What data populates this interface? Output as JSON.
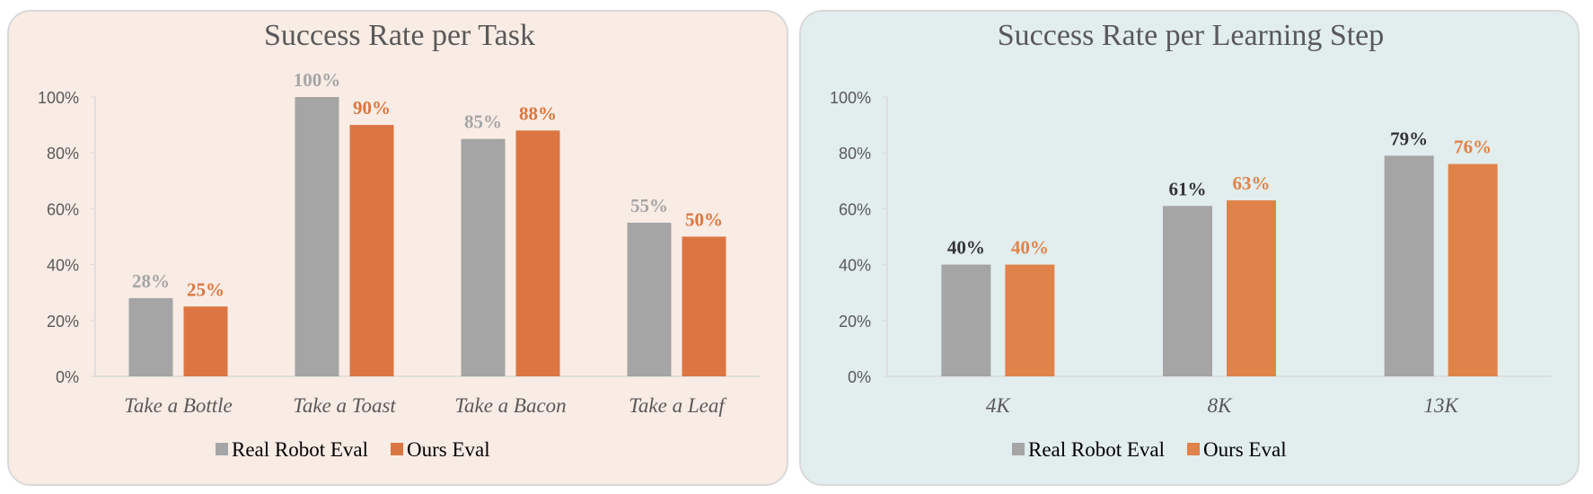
{
  "chart_data": [
    {
      "type": "bar",
      "title": "Success Rate per Task",
      "categories": [
        "Take a Bottle",
        "Take a Toast",
        "Take a Bacon",
        "Take a Leaf"
      ],
      "series": [
        {
          "name": "Real Robot Eval",
          "values": [
            28,
            100,
            85,
            55
          ],
          "color": "#a5a5a5",
          "label_color": "#a5a5a5"
        },
        {
          "name": "Ours Eval",
          "values": [
            25,
            90,
            88,
            50
          ],
          "color": "#db7642",
          "label_color": "#db7642"
        }
      ],
      "yticks": [
        "0%",
        "20%",
        "40%",
        "60%",
        "80%",
        "100%"
      ],
      "ylim": [
        0,
        100
      ],
      "value_format": "percent",
      "legend": "bottom",
      "grid": false,
      "background": "#f9ece4"
    },
    {
      "type": "bar",
      "title": "Success Rate per Learning Step",
      "categories": [
        "4K",
        "8K",
        "13K"
      ],
      "series": [
        {
          "name": "Real Robot Eval",
          "values": [
            40,
            61,
            79
          ],
          "color": "#a5a5a5",
          "label_color": "#333333"
        },
        {
          "name": "Ours Eval",
          "values": [
            40,
            63,
            76
          ],
          "color": "#e0834a",
          "label_color": "#e0834a"
        }
      ],
      "yticks": [
        "0%",
        "20%",
        "40%",
        "60%",
        "80%",
        "100%"
      ],
      "ylim": [
        0,
        100
      ],
      "value_format": "percent",
      "legend": "bottom",
      "grid": false,
      "background": "#e2eded"
    }
  ]
}
